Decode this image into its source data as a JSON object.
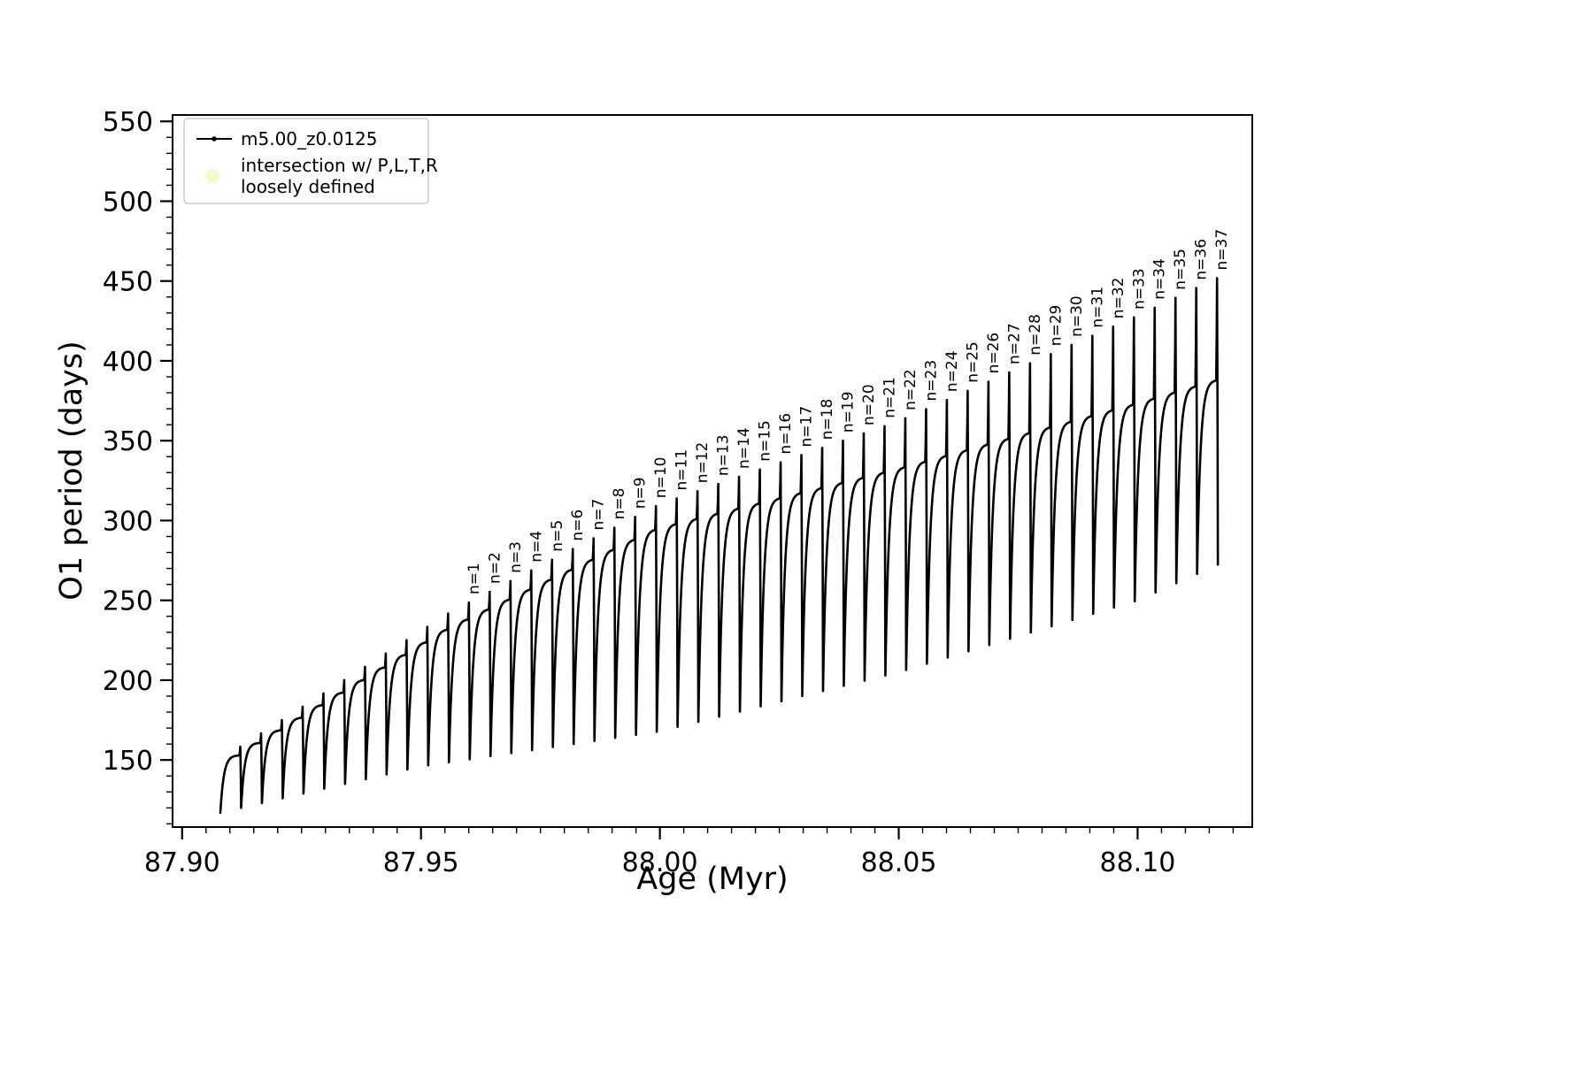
{
  "page": {
    "background": "#ffffff"
  },
  "chart_data": {
    "type": "line",
    "title": "",
    "xlabel": "Age (Myr)",
    "ylabel": "O1 period (days)",
    "xlim": [
      87.898,
      88.124
    ],
    "ylim": [
      108,
      554
    ],
    "x_major_ticks": [
      87.9,
      87.95,
      88.0,
      88.05,
      88.1
    ],
    "x_major_tick_labels": [
      "87.90",
      "87.95",
      "88.00",
      "88.05",
      "88.10"
    ],
    "x_minor_step": 0.005,
    "y_major_ticks": [
      150,
      200,
      250,
      300,
      350,
      400,
      450,
      500,
      550
    ],
    "y_major_tick_labels": [
      "150",
      "200",
      "250",
      "300",
      "350",
      "400",
      "450",
      "500",
      "550"
    ],
    "y_minor_step": 10,
    "grid": false,
    "legend_position": "upper-left",
    "legend": [
      {
        "label_lines": [
          "m5.00_z0.0125"
        ],
        "marker": "line-dot",
        "color": "#000000"
      },
      {
        "label_lines": [
          "intersection w/ P,L,T,R",
          "loosely defined"
        ],
        "marker": "dot",
        "color": "#f8f8c8"
      }
    ],
    "series": {
      "name": "m5.00_z0.0125",
      "color": "#000000",
      "model": "sawtooth",
      "tooth_start_x": 87.908,
      "tooth_period": 0.00435,
      "tooth_count": 48,
      "peak_envelope": [
        [
          87.908,
          150
        ],
        [
          87.9565,
          243
        ],
        [
          88.0,
          310
        ],
        [
          88.05,
          362
        ],
        [
          88.1,
          428
        ],
        [
          88.124,
          462
        ]
      ],
      "bottom_envelope": [
        [
          87.908,
          117
        ],
        [
          87.95,
          146
        ],
        [
          88.0,
          168
        ],
        [
          88.05,
          205
        ],
        [
          88.1,
          250
        ],
        [
          88.124,
          282
        ]
      ],
      "spike_envelope": [
        [
          87.908,
          5
        ],
        [
          88.0,
          15
        ],
        [
          88.05,
          30
        ],
        [
          88.1,
          55
        ],
        [
          88.124,
          68
        ]
      ]
    },
    "annotations": [
      {
        "label": "n=1",
        "tooth": 11
      },
      {
        "label": "n=2",
        "tooth": 12
      },
      {
        "label": "n=3",
        "tooth": 13
      },
      {
        "label": "n=4",
        "tooth": 14
      },
      {
        "label": "n=5",
        "tooth": 15
      },
      {
        "label": "n=6",
        "tooth": 16
      },
      {
        "label": "n=7",
        "tooth": 17
      },
      {
        "label": "n=8",
        "tooth": 18
      },
      {
        "label": "n=9",
        "tooth": 19
      },
      {
        "label": "n=10",
        "tooth": 20
      },
      {
        "label": "n=11",
        "tooth": 21
      },
      {
        "label": "n=12",
        "tooth": 22
      },
      {
        "label": "n=13",
        "tooth": 23
      },
      {
        "label": "n=14",
        "tooth": 24
      },
      {
        "label": "n=15",
        "tooth": 25
      },
      {
        "label": "n=16",
        "tooth": 26
      },
      {
        "label": "n=17",
        "tooth": 27
      },
      {
        "label": "n=18",
        "tooth": 28
      },
      {
        "label": "n=19",
        "tooth": 29
      },
      {
        "label": "n=20",
        "tooth": 30
      },
      {
        "label": "n=21",
        "tooth": 31
      },
      {
        "label": "n=22",
        "tooth": 32
      },
      {
        "label": "n=23",
        "tooth": 33
      },
      {
        "label": "n=24",
        "tooth": 34
      },
      {
        "label": "n=25",
        "tooth": 35
      },
      {
        "label": "n=26",
        "tooth": 36
      },
      {
        "label": "n=27",
        "tooth": 37
      },
      {
        "label": "n=28",
        "tooth": 38
      },
      {
        "label": "n=29",
        "tooth": 39
      },
      {
        "label": "n=30",
        "tooth": 40
      },
      {
        "label": "n=31",
        "tooth": 41
      },
      {
        "label": "n=32",
        "tooth": 42
      },
      {
        "label": "n=33",
        "tooth": 43
      },
      {
        "label": "n=34",
        "tooth": 44
      },
      {
        "label": "n=35",
        "tooth": 45
      },
      {
        "label": "n=36",
        "tooth": 46
      },
      {
        "label": "n=37",
        "tooth": 47
      }
    ]
  }
}
